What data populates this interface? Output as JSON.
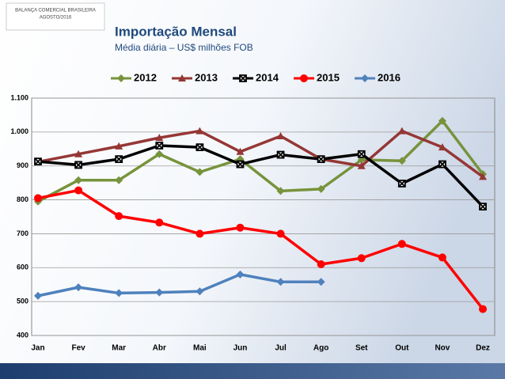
{
  "header": {
    "org": "BALANÇA COMERCIAL BRASILEIRA",
    "date": "AGOSTO/2016"
  },
  "chart_data": {
    "type": "line",
    "title": "Importação Mensal",
    "subtitle": "Média diária – US$ milhões FOB",
    "categories": [
      "Jan",
      "Fev",
      "Mar",
      "Abr",
      "Mai",
      "Jun",
      "Jul",
      "Ago",
      "Set",
      "Out",
      "Nov",
      "Dez"
    ],
    "series": [
      {
        "name": "2012",
        "color": "#77933c",
        "marker": "diamond",
        "values": [
          795,
          858,
          858,
          935,
          882,
          920,
          826,
          832,
          918,
          915,
          1033,
          876
        ]
      },
      {
        "name": "2013",
        "color": "#953735",
        "marker": "triangle",
        "values": [
          912,
          935,
          958,
          983,
          1003,
          942,
          988,
          920,
          900,
          1003,
          955,
          868
        ]
      },
      {
        "name": "2014",
        "color": "#000000",
        "marker": "xsquare",
        "values": [
          913,
          903,
          920,
          960,
          955,
          905,
          933,
          920,
          935,
          848,
          905,
          780
        ]
      },
      {
        "name": "2015",
        "color": "#ff0000",
        "marker": "circle",
        "values": [
          805,
          828,
          752,
          733,
          700,
          718,
          700,
          610,
          628,
          670,
          630,
          478
        ]
      },
      {
        "name": "2016",
        "color": "#4f81bd",
        "marker": "diamond",
        "values": [
          517,
          542,
          525,
          527,
          530,
          580,
          558,
          558,
          null,
          null,
          null,
          null
        ]
      }
    ],
    "ylim": [
      400,
      1100
    ],
    "yticks": [
      400,
      500,
      600,
      700,
      800,
      900,
      {
        "value": 1000,
        "label": "1.000"
      },
      {
        "value": 1100,
        "label": "1.100"
      }
    ],
    "grid": true,
    "legend": "top"
  }
}
